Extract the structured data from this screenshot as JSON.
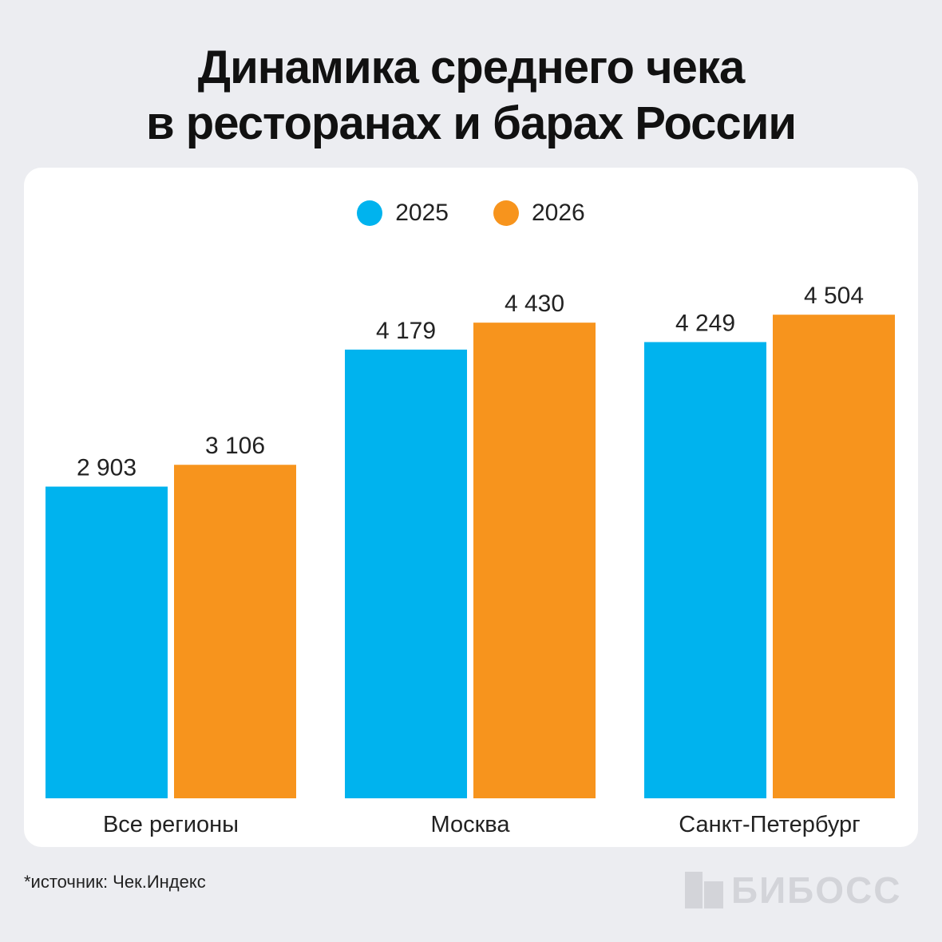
{
  "title": {
    "line1": "Динамика среднего чека",
    "line2": "в ресторанах и барах России"
  },
  "footnote": "*источник: Чек.Индекс",
  "logo": {
    "text": "БИБОСС"
  },
  "colors": {
    "series_2025": "#00B3EE",
    "series_2026": "#F7941D",
    "logo": "#D3D4D9"
  },
  "chart_data": {
    "type": "bar",
    "title": "Динамика среднего чека в ресторанах и барах России",
    "categories": [
      "Все регионы",
      "Москва",
      "Санкт-Петербург"
    ],
    "series": [
      {
        "name": "2025",
        "values": [
          2903,
          4179,
          4249
        ],
        "labels": [
          "2 903",
          "4 179",
          "4 249"
        ]
      },
      {
        "name": "2026",
        "values": [
          3106,
          4430,
          4504
        ],
        "labels": [
          "3 106",
          "4 430",
          "4 504"
        ]
      }
    ],
    "ylim": [
      0,
      5000
    ],
    "grid": false,
    "legend": "top-center",
    "data_labels": true
  }
}
